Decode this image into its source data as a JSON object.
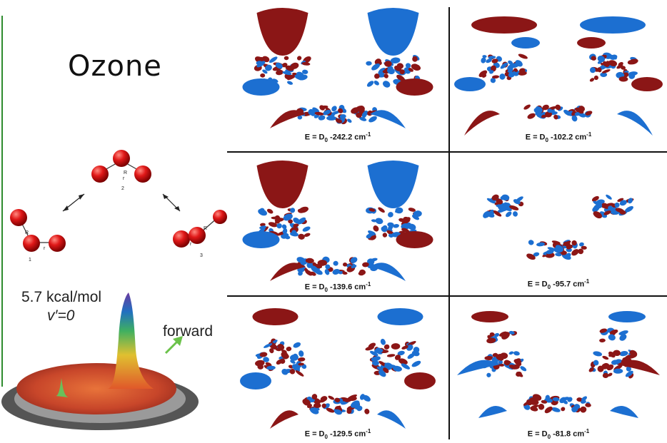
{
  "title": "Ozone",
  "colors": {
    "red": "#8b1616",
    "blue": "#1c6fd1",
    "green_line": "#2e8b2e"
  },
  "molecules": {
    "labels": [
      "1",
      "2",
      "3"
    ],
    "bond_labels": {
      "R": "R",
      "r": "r"
    }
  },
  "surface": {
    "energy": "5.7 kcal/mol",
    "state": "v′=0",
    "arrow_label": "forward"
  },
  "panels": [
    {
      "prefix": "E = D",
      "sub": "0",
      "value": " -242.2 cm",
      "sup": "-1"
    },
    {
      "prefix": "E = D",
      "sub": "0",
      "value": " -102.2 cm",
      "sup": "-1"
    },
    {
      "prefix": "E = D",
      "sub": "0",
      "value": " -139.6 cm",
      "sup": "-1"
    },
    {
      "prefix": "E = D",
      "sub": "0",
      "value": " -95.7 cm",
      "sup": "-1"
    },
    {
      "prefix": "E = D",
      "sub": "0",
      "value": " -129.5 cm",
      "sup": "-1"
    },
    {
      "prefix": "E = D",
      "sub": "0",
      "value": " -81.8 cm",
      "sup": "-1"
    }
  ]
}
